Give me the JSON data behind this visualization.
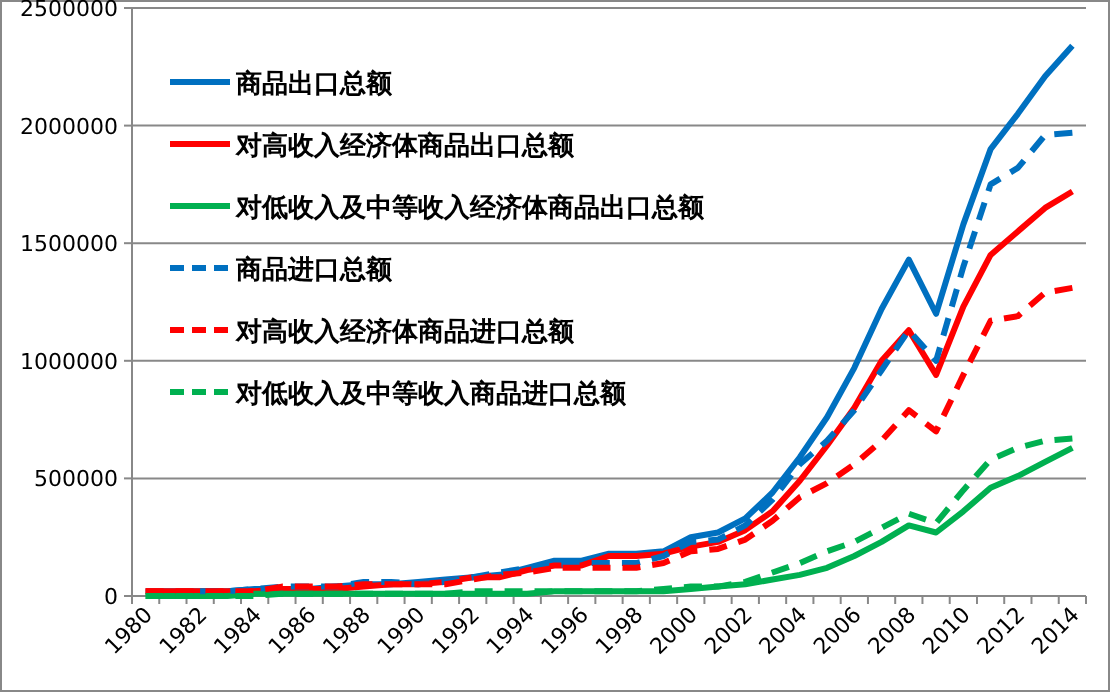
{
  "chart_data": {
    "type": "line",
    "categories": [
      "1980",
      null,
      "1982",
      null,
      "1984",
      null,
      "1986",
      null,
      "1988",
      null,
      "1990",
      null,
      "1992",
      null,
      "1994",
      null,
      "1996",
      null,
      "1998",
      null,
      "2000",
      null,
      "2002",
      null,
      "2004",
      null,
      "2006",
      null,
      "2008",
      null,
      "2010",
      null,
      "2012",
      null,
      "2014"
    ],
    "ylim": [
      0,
      2500000
    ],
    "yticks": [
      0,
      500000,
      1000000,
      1500000,
      2000000,
      2500000
    ],
    "grid": "y",
    "legend": "top left",
    "series": [
      {
        "name": "商品出口总额",
        "color": "#0070c0",
        "line_style": "solid",
        "values": [
          20000,
          20000,
          20000,
          20000,
          30000,
          30000,
          30000,
          40000,
          50000,
          50000,
          60000,
          70000,
          80000,
          90000,
          120000,
          150000,
          150000,
          180000,
          180000,
          190000,
          250000,
          270000,
          330000,
          440000,
          590000,
          760000,
          970000,
          1220000,
          1430000,
          1200000,
          1580000,
          1900000,
          2050000,
          2210000,
          2340000
        ]
      },
      {
        "name": "对高收入经济体商品出口总额",
        "color": "#ff0000",
        "line_style": "solid",
        "values": [
          20000,
          20000,
          20000,
          20000,
          20000,
          30000,
          30000,
          30000,
          40000,
          50000,
          50000,
          60000,
          80000,
          80000,
          110000,
          130000,
          130000,
          170000,
          170000,
          180000,
          210000,
          230000,
          280000,
          360000,
          490000,
          640000,
          800000,
          1000000,
          1130000,
          940000,
          1230000,
          1450000,
          1550000,
          1650000,
          1720000
        ]
      },
      {
        "name": "对低收入及中等收入经济体商品出口总额",
        "color": "#00b050",
        "line_style": "solid",
        "values": [
          0,
          0,
          0,
          0,
          10000,
          10000,
          10000,
          10000,
          10000,
          10000,
          10000,
          10000,
          10000,
          10000,
          10000,
          20000,
          20000,
          20000,
          20000,
          20000,
          30000,
          40000,
          50000,
          70000,
          90000,
          120000,
          170000,
          230000,
          300000,
          270000,
          360000,
          460000,
          510000,
          570000,
          630000
        ]
      },
      {
        "name": "商品进口总额",
        "color": "#0070c0",
        "line_style": "dashed",
        "values": [
          null,
          null,
          20000,
          20000,
          30000,
          40000,
          40000,
          40000,
          60000,
          60000,
          50000,
          60000,
          80000,
          100000,
          120000,
          130000,
          140000,
          140000,
          140000,
          170000,
          230000,
          240000,
          300000,
          410000,
          560000,
          660000,
          790000,
          960000,
          1130000,
          1000000,
          1400000,
          1750000,
          1820000,
          1960000,
          1970000
        ]
      },
      {
        "name": "对高收入经济体商品进口总额",
        "color": "#ff0000",
        "line_style": "dashed",
        "values": [
          20000,
          20000,
          20000,
          20000,
          20000,
          40000,
          40000,
          40000,
          50000,
          50000,
          50000,
          50000,
          70000,
          90000,
          100000,
          120000,
          120000,
          120000,
          120000,
          140000,
          190000,
          200000,
          240000,
          320000,
          420000,
          480000,
          560000,
          660000,
          790000,
          700000,
          940000,
          1170000,
          1190000,
          1290000,
          1310000
        ]
      },
      {
        "name": "对低收入及中等收入商品进口总额",
        "color": "#00b050",
        "line_style": "dashed",
        "values": [
          0,
          0,
          0,
          0,
          0,
          10000,
          10000,
          10000,
          10000,
          10000,
          10000,
          10000,
          20000,
          20000,
          20000,
          20000,
          20000,
          20000,
          20000,
          30000,
          40000,
          40000,
          60000,
          100000,
          140000,
          190000,
          230000,
          290000,
          350000,
          310000,
          450000,
          580000,
          630000,
          660000,
          670000
        ]
      }
    ]
  }
}
